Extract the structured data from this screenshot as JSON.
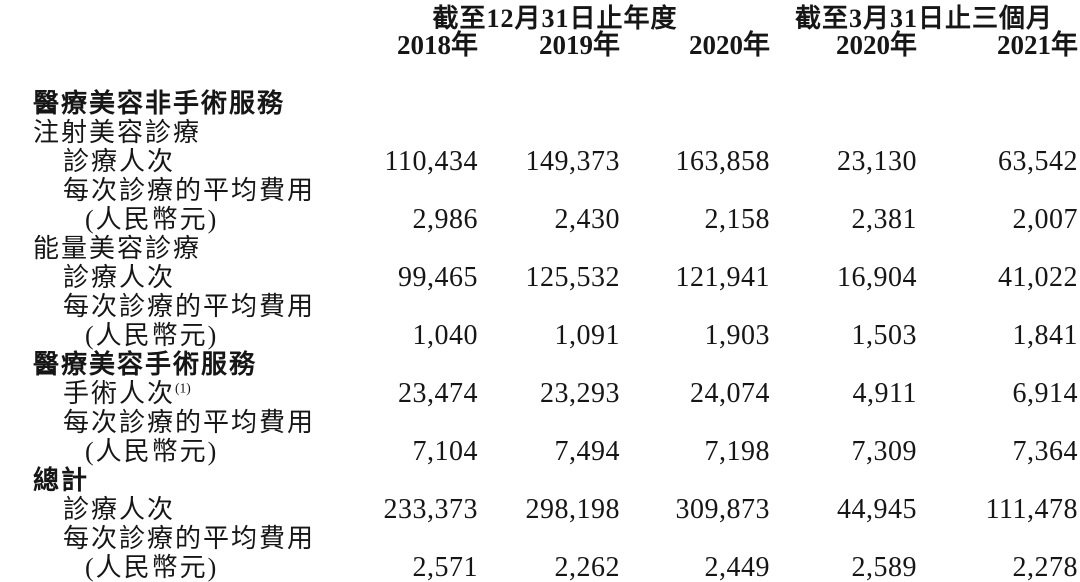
{
  "table": {
    "header": {
      "groups": [
        {
          "label": "截至12月31日止年度",
          "span": 3
        },
        {
          "label": "截至3月31日止三個月",
          "span": 2
        }
      ],
      "years": [
        "2018年",
        "2019年",
        "2020年",
        "2020年",
        "2021年"
      ]
    },
    "rows": [
      {
        "label": "醫療美容非手術服務",
        "style": "section",
        "values": [
          "",
          "",
          "",
          "",
          ""
        ]
      },
      {
        "label": "注射美容診療",
        "style": "subsection",
        "values": [
          "",
          "",
          "",
          "",
          ""
        ]
      },
      {
        "label": "診療人次",
        "style": "item",
        "values": [
          "110,434",
          "149,373",
          "163,858",
          "23,130",
          "63,542"
        ]
      },
      {
        "label": "每次診療的平均費用",
        "style": "item",
        "values": [
          "",
          "",
          "",
          "",
          ""
        ]
      },
      {
        "label": "(人民幣元)",
        "style": "item2",
        "values": [
          "2,986",
          "2,430",
          "2,158",
          "2,381",
          "2,007"
        ]
      },
      {
        "label": "能量美容診療",
        "style": "subsection",
        "values": [
          "",
          "",
          "",
          "",
          ""
        ]
      },
      {
        "label": "診療人次",
        "style": "item",
        "values": [
          "99,465",
          "125,532",
          "121,941",
          "16,904",
          "41,022"
        ]
      },
      {
        "label": "每次診療的平均費用",
        "style": "item",
        "values": [
          "",
          "",
          "",
          "",
          ""
        ]
      },
      {
        "label": "(人民幣元)",
        "style": "item2",
        "values": [
          "1,040",
          "1,091",
          "1,903",
          "1,503",
          "1,841"
        ]
      },
      {
        "label": "醫療美容手術服務",
        "style": "section",
        "values": [
          "",
          "",
          "",
          "",
          ""
        ]
      },
      {
        "label": "手術人次",
        "sup": "(1)",
        "style": "item",
        "values": [
          "23,474",
          "23,293",
          "24,074",
          "4,911",
          "6,914"
        ]
      },
      {
        "label": "每次診療的平均費用",
        "style": "item",
        "values": [
          "",
          "",
          "",
          "",
          ""
        ]
      },
      {
        "label": "(人民幣元)",
        "style": "item2",
        "values": [
          "7,104",
          "7,494",
          "7,198",
          "7,309",
          "7,364"
        ]
      },
      {
        "label": "總計",
        "style": "section",
        "values": [
          "",
          "",
          "",
          "",
          ""
        ]
      },
      {
        "label": "診療人次",
        "style": "item",
        "values": [
          "233,373",
          "298,198",
          "309,873",
          "44,945",
          "111,478"
        ]
      },
      {
        "label": "每次診療的平均費用",
        "style": "item",
        "values": [
          "",
          "",
          "",
          "",
          ""
        ]
      },
      {
        "label": "(人民幣元)",
        "style": "item2",
        "values": [
          "2,571",
          "2,262",
          "2,449",
          "2,589",
          "2,278"
        ]
      }
    ]
  }
}
